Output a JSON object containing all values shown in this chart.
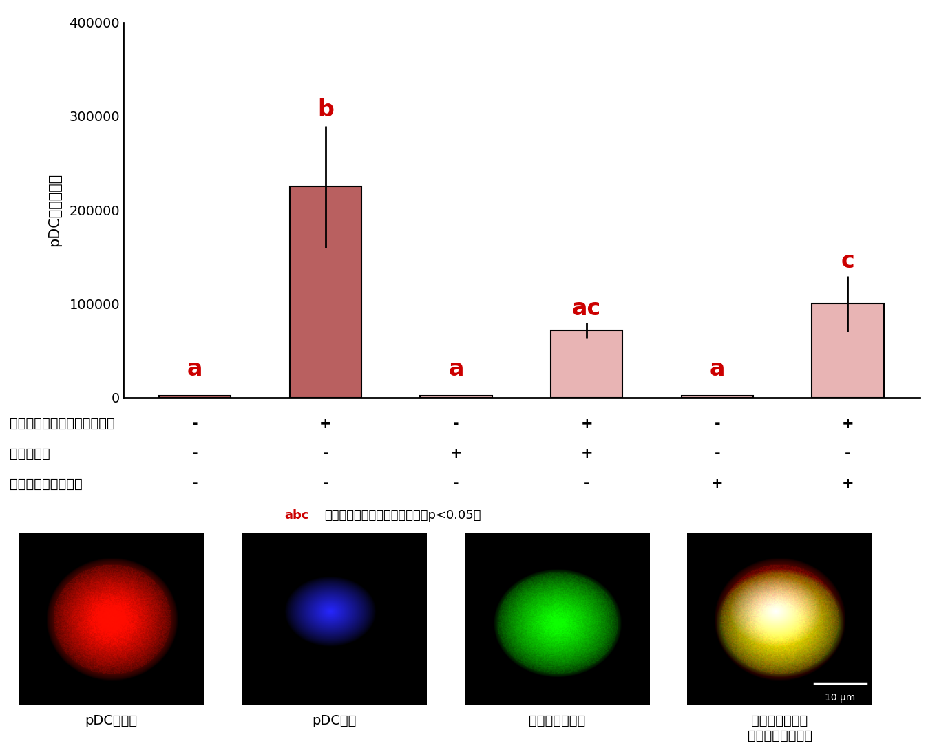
{
  "bar_values": [
    2000,
    225000,
    2000,
    72000,
    2000,
    100000
  ],
  "bar_errors": [
    0,
    65000,
    0,
    8000,
    0,
    30000
  ],
  "bar_colors_list": [
    "#b96060",
    "#b96060",
    "#e8b4b4",
    "#e8b4b4",
    "#e8b4b4",
    "#e8b4b4"
  ],
  "bar_label_letters": [
    "a",
    "b",
    "a",
    "ac",
    "a",
    "c"
  ],
  "label_color": "#cc0000",
  "ylim": [
    0,
    400000
  ],
  "yticks": [
    0,
    100000,
    200000,
    300000,
    400000
  ],
  "ylabel": "pDCの蛍光強度",
  "row_labels": [
    "蛍光標識したラクトフェリン",
    "貪食阻害剤",
    "ヌクレオリン阻害剤"
  ],
  "row_values": [
    [
      "-",
      "+",
      "-",
      "+",
      "-",
      "+"
    ],
    [
      "-",
      "-",
      "+",
      "+",
      "-",
      "-"
    ],
    [
      "-",
      "-",
      "-",
      "-",
      "+",
      "+"
    ]
  ],
  "note_red_part": "abc",
  "note_black_part": "：異なる文字間で有意差あり（p<0.05）",
  "image_captions": [
    "pDCの表面",
    "pDCの核",
    "ラクトフェリン",
    "左の３枚の図を\n重ね合わせた画像"
  ],
  "scale_bar_label": "10 μm",
  "fig_bg": "#ffffff",
  "bar_width": 0.55
}
